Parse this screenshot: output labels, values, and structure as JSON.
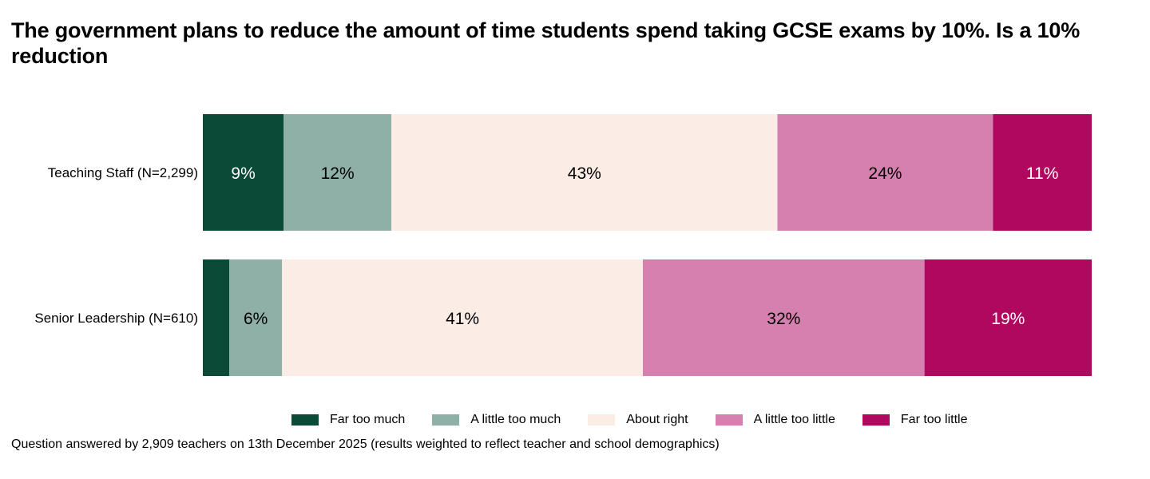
{
  "title": "The government plans to reduce the amount of time students spend taking GCSE exams by 10%. Is a 10% reduction",
  "footnote": "Question answered by 2,909 teachers on 13th December 2025 (results weighted to reflect teacher and school demographics)",
  "chart_data": {
    "type": "bar",
    "orientation": "horizontal",
    "stacked": true,
    "unit": "%",
    "xlim": [
      0,
      100
    ],
    "categories": [
      "Teaching Staff (N=2,299)",
      "Senior Leadership (N=610)"
    ],
    "series": [
      {
        "name": "Far too much",
        "color": "#0b4a36",
        "text": "#ffffff",
        "values": [
          9,
          3
        ],
        "labels": [
          "9%",
          ""
        ]
      },
      {
        "name": "A little too much",
        "color": "#8fb0a6",
        "text": "#000000",
        "values": [
          12,
          6
        ],
        "labels": [
          "12%",
          "6%"
        ]
      },
      {
        "name": "About right",
        "color": "#fbece5",
        "text": "#000000",
        "values": [
          43,
          41
        ],
        "labels": [
          "43%",
          "41%"
        ]
      },
      {
        "name": "A little too little",
        "color": "#d580ae",
        "text": "#000000",
        "values": [
          24,
          32
        ],
        "labels": [
          "24%",
          "32%"
        ]
      },
      {
        "name": "Far too little",
        "color": "#b0085f",
        "text": "#ffffff",
        "values": [
          11,
          19
        ],
        "labels": [
          "11%",
          "19%"
        ]
      }
    ],
    "legend": "bottom"
  }
}
